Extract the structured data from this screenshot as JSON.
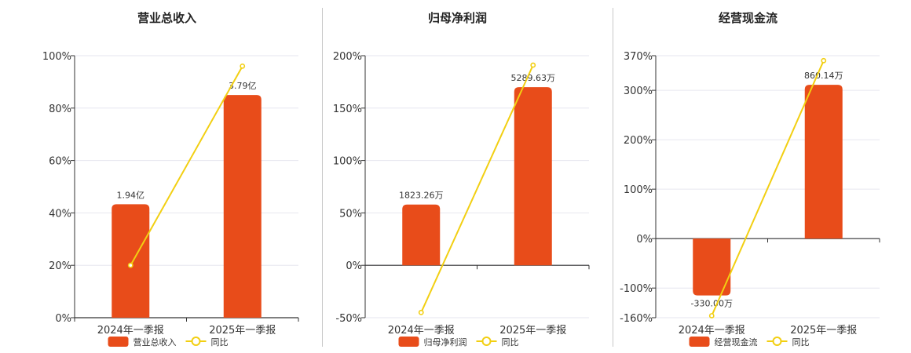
{
  "colors": {
    "bar": "#e84c1a",
    "line": "#f2cf12",
    "grid": "#e6e6ef",
    "axis": "#333333"
  },
  "chart_data": [
    {
      "type": "bar",
      "title": "营业总收入",
      "categories": [
        "2024年一季报",
        "2025年一季报"
      ],
      "y_ticks": [
        "0%",
        "20%",
        "40%",
        "60%",
        "80%",
        "100%"
      ],
      "ylim": [
        0,
        100
      ],
      "series": [
        {
          "name": "营业总收入",
          "type": "bar",
          "values": [
            43.3,
            85
          ],
          "labels": [
            "1.94亿",
            "3.79亿"
          ]
        },
        {
          "name": "同比",
          "type": "line",
          "values": [
            20,
            96
          ]
        }
      ],
      "legend_position": "bottom"
    },
    {
      "type": "bar",
      "title": "归母净利润",
      "categories": [
        "2024年一季报",
        "2025年一季报"
      ],
      "y_ticks": [
        "-50%",
        "0%",
        "50%",
        "100%",
        "150%",
        "200%"
      ],
      "ylim": [
        -50,
        200
      ],
      "series": [
        {
          "name": "归母净利润",
          "type": "bar",
          "values": [
            58,
            170
          ],
          "labels": [
            "1823.26万",
            "5289.63万"
          ]
        },
        {
          "name": "同比",
          "type": "line",
          "values": [
            -45,
            191
          ]
        }
      ],
      "legend_position": "bottom"
    },
    {
      "type": "bar",
      "title": "经营现金流",
      "categories": [
        "2024年一季报",
        "2025年一季报"
      ],
      "y_ticks": [
        "-160%",
        "-100%",
        "0%",
        "100%",
        "200%",
        "300%",
        "370%"
      ],
      "ylim": [
        -160,
        370
      ],
      "series": [
        {
          "name": "经营现金流",
          "type": "bar",
          "values": [
            -115,
            311
          ],
          "labels": [
            "-330.00万",
            "860.14万"
          ]
        },
        {
          "name": "同比",
          "type": "line",
          "values": [
            -156,
            360
          ]
        }
      ],
      "legend_position": "bottom"
    }
  ]
}
